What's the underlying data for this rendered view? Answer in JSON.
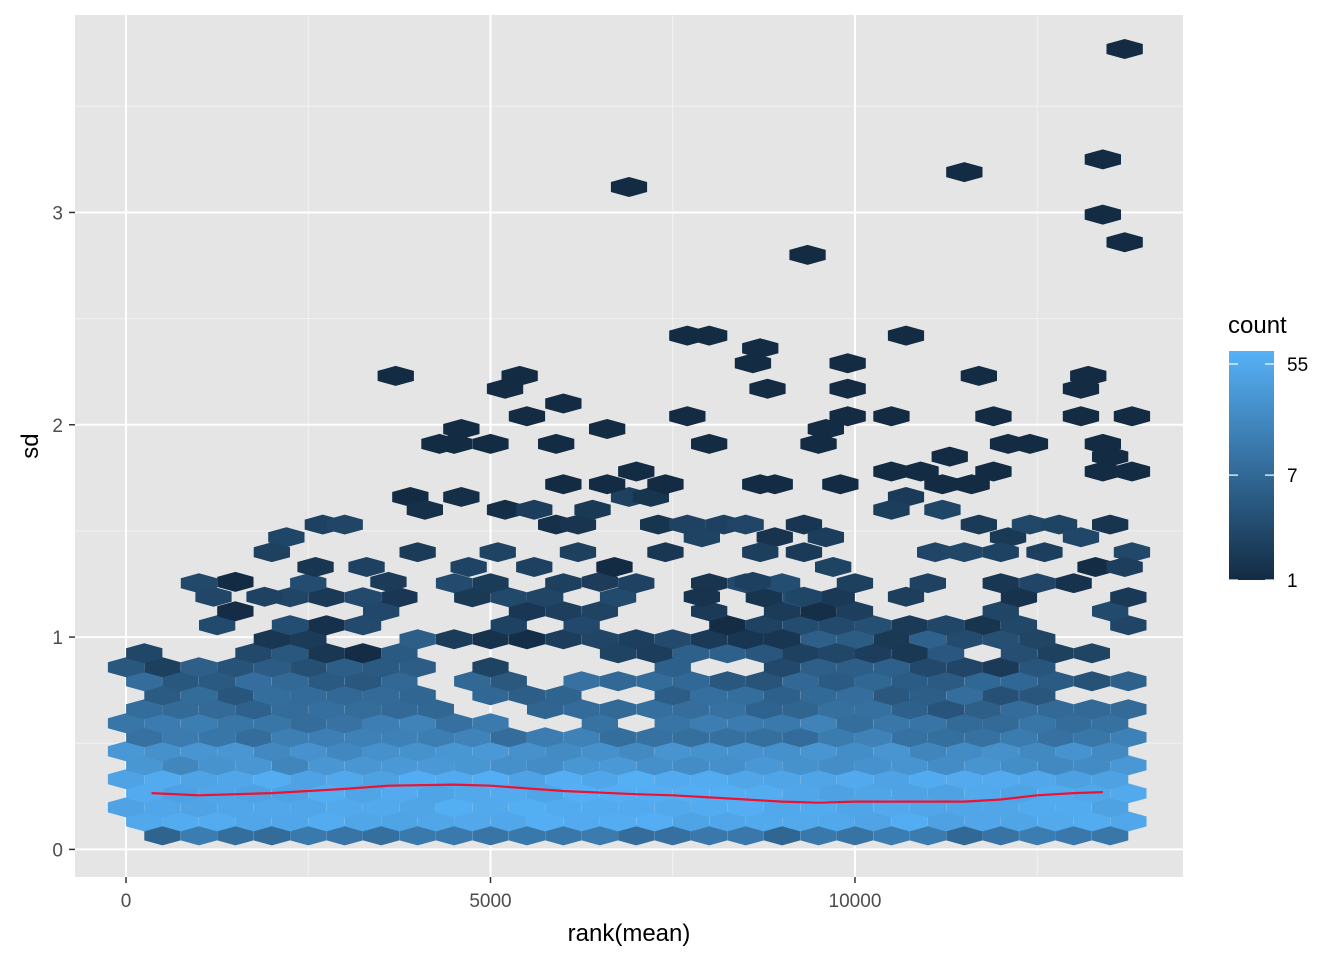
{
  "chart_data": {
    "type": "hexbin",
    "title": "",
    "xlabel": "rank(mean)",
    "ylabel": "sd",
    "xlim": [
      -700,
      14500
    ],
    "ylim": [
      -0.13,
      3.93
    ],
    "x_ticks": [
      0,
      5000,
      10000
    ],
    "y_ticks": [
      0,
      1,
      2,
      3
    ],
    "x_tick_labels": [
      "0",
      "5000",
      "10000"
    ],
    "y_tick_labels": [
      "0",
      "1",
      "2",
      "3"
    ],
    "grid": true,
    "background_color": "#e5e5e5",
    "grid_color": "#ffffff",
    "legend": {
      "title": "count",
      "placement": "right",
      "scale": "log",
      "breaks": [
        55,
        7,
        1
      ],
      "break_labels": [
        "55",
        "7",
        "1"
      ],
      "color_low": "#132b43",
      "color_high": "#56b1f7",
      "min": 1,
      "max": 70
    },
    "hex_bins": {
      "x_start": 0,
      "x_end": 13900,
      "x_step": 500,
      "dy": 0.066,
      "outliers": [
        {
          "x": 6900,
          "y": 3.12
        },
        {
          "x": 9350,
          "y": 2.8
        },
        {
          "x": 11500,
          "y": 3.19
        },
        {
          "x": 13400,
          "y": 3.25
        },
        {
          "x": 13400,
          "y": 2.99
        },
        {
          "x": 13700,
          "y": 2.86
        },
        {
          "x": 13700,
          "y": 3.77
        },
        {
          "x": 3700,
          "y": 2.23
        },
        {
          "x": 7700,
          "y": 2.42
        },
        {
          "x": 8000,
          "y": 2.42
        },
        {
          "x": 8700,
          "y": 2.36
        },
        {
          "x": 8600,
          "y": 2.29
        },
        {
          "x": 10700,
          "y": 2.42
        },
        {
          "x": 9900,
          "y": 2.29
        },
        {
          "x": 5400,
          "y": 2.23
        },
        {
          "x": 5200,
          "y": 2.17
        },
        {
          "x": 6000,
          "y": 2.1
        },
        {
          "x": 11700,
          "y": 2.23
        },
        {
          "x": 13200,
          "y": 2.23
        },
        {
          "x": 13100,
          "y": 2.17
        },
        {
          "x": 8800,
          "y": 2.17
        },
        {
          "x": 9900,
          "y": 2.17
        },
        {
          "x": 5500,
          "y": 2.04
        },
        {
          "x": 7700,
          "y": 2.04
        },
        {
          "x": 9900,
          "y": 2.04
        },
        {
          "x": 10500,
          "y": 2.04
        },
        {
          "x": 11900,
          "y": 2.04
        },
        {
          "x": 13100,
          "y": 2.04
        },
        {
          "x": 13800,
          "y": 2.04
        },
        {
          "x": 4600,
          "y": 1.98
        },
        {
          "x": 6600,
          "y": 1.98
        },
        {
          "x": 9600,
          "y": 1.98
        },
        {
          "x": 4500,
          "y": 1.91
        },
        {
          "x": 4300,
          "y": 1.91
        },
        {
          "x": 5000,
          "y": 1.91
        },
        {
          "x": 5900,
          "y": 1.91
        },
        {
          "x": 8000,
          "y": 1.91
        },
        {
          "x": 9500,
          "y": 1.91
        },
        {
          "x": 12100,
          "y": 1.91
        },
        {
          "x": 12400,
          "y": 1.91
        },
        {
          "x": 13400,
          "y": 1.91
        },
        {
          "x": 11300,
          "y": 1.85
        },
        {
          "x": 13500,
          "y": 1.85
        },
        {
          "x": 7000,
          "y": 1.78
        },
        {
          "x": 10500,
          "y": 1.78
        },
        {
          "x": 10900,
          "y": 1.78
        },
        {
          "x": 11900,
          "y": 1.78
        },
        {
          "x": 13400,
          "y": 1.78
        },
        {
          "x": 13800,
          "y": 1.78
        },
        {
          "x": 11200,
          "y": 1.72
        },
        {
          "x": 11600,
          "y": 1.72
        },
        {
          "x": 9800,
          "y": 1.72
        },
        {
          "x": 7400,
          "y": 1.72
        },
        {
          "x": 6000,
          "y": 1.72
        },
        {
          "x": 6600,
          "y": 1.72
        },
        {
          "x": 8700,
          "y": 1.72
        },
        {
          "x": 8900,
          "y": 1.72
        }
      ],
      "upper_density": [
        [
          1500,
          1.26
        ],
        [
          1200,
          1.19
        ],
        [
          1900,
          1.19
        ],
        [
          2200,
          1.47
        ],
        [
          2000,
          1.4
        ],
        [
          2700,
          1.53
        ],
        [
          3000,
          1.53
        ],
        [
          2600,
          1.33
        ],
        [
          3300,
          1.33
        ],
        [
          4000,
          1.4
        ],
        [
          3900,
          1.66
        ],
        [
          4100,
          1.6
        ],
        [
          4600,
          1.66
        ],
        [
          5200,
          1.6
        ],
        [
          5600,
          1.6
        ],
        [
          5900,
          1.53
        ],
        [
          6200,
          1.53
        ],
        [
          6400,
          1.6
        ],
        [
          6900,
          1.66
        ],
        [
          7200,
          1.66
        ],
        [
          7300,
          1.53
        ],
        [
          7700,
          1.53
        ],
        [
          7900,
          1.47
        ],
        [
          8200,
          1.53
        ],
        [
          8500,
          1.53
        ],
        [
          8900,
          1.47
        ],
        [
          9300,
          1.53
        ],
        [
          9600,
          1.47
        ],
        [
          9300,
          1.4
        ],
        [
          8700,
          1.4
        ],
        [
          10700,
          1.66
        ],
        [
          10500,
          1.6
        ],
        [
          11200,
          1.6
        ],
        [
          11100,
          1.4
        ],
        [
          11700,
          1.53
        ],
        [
          12100,
          1.47
        ],
        [
          12400,
          1.53
        ],
        [
          12800,
          1.53
        ],
        [
          13100,
          1.47
        ],
        [
          13500,
          1.53
        ],
        [
          13800,
          1.4
        ],
        [
          11500,
          1.4
        ],
        [
          12000,
          1.4
        ],
        [
          10700,
          1.19
        ],
        [
          8600,
          1.26
        ],
        [
          9300,
          1.19
        ],
        [
          7900,
          1.19
        ],
        [
          6500,
          1.26
        ],
        [
          3600,
          1.26
        ],
        [
          4700,
          1.33
        ],
        [
          5100,
          1.4
        ],
        [
          5600,
          1.33
        ],
        [
          6200,
          1.4
        ],
        [
          6700,
          1.33
        ],
        [
          7400,
          1.4
        ],
        [
          9700,
          1.33
        ],
        [
          12600,
          1.4
        ],
        [
          13300,
          1.33
        ],
        [
          13700,
          1.33
        ]
      ]
    },
    "smooth_line": {
      "color": "#ee1133",
      "x": [
        350,
        1000,
        2000,
        3000,
        3600,
        4500,
        5000,
        6000,
        7000,
        7500,
        8000,
        9000,
        9500,
        10000,
        11000,
        11500,
        12000,
        12500,
        13000,
        13400
      ],
      "y": [
        0.265,
        0.255,
        0.265,
        0.285,
        0.3,
        0.305,
        0.3,
        0.275,
        0.26,
        0.255,
        0.245,
        0.225,
        0.22,
        0.225,
        0.225,
        0.225,
        0.235,
        0.255,
        0.265,
        0.27
      ]
    }
  }
}
